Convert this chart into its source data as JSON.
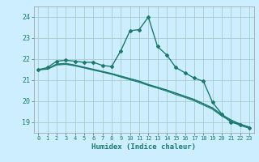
{
  "title": "",
  "xlabel": "Humidex (Indice chaleur)",
  "bg_color": "#cceeff",
  "grid_color": "#aacccc",
  "line_color": "#1a7a6e",
  "xlim": [
    -0.5,
    23.5
  ],
  "ylim": [
    18.5,
    24.5
  ],
  "yticks": [
    19,
    20,
    21,
    22,
    23,
    24
  ],
  "xticks": [
    0,
    1,
    2,
    3,
    4,
    5,
    6,
    7,
    8,
    9,
    10,
    11,
    12,
    13,
    14,
    15,
    16,
    17,
    18,
    19,
    20,
    21,
    22,
    23
  ],
  "lines": [
    {
      "x": [
        0,
        1,
        2,
        3,
        4,
        5,
        6,
        7,
        8,
        9,
        10,
        11,
        12,
        13,
        14,
        15,
        16,
        17,
        18,
        19,
        20,
        21,
        22,
        23
      ],
      "y": [
        21.5,
        21.6,
        21.9,
        21.95,
        21.9,
        21.85,
        21.85,
        21.7,
        21.65,
        22.4,
        23.35,
        23.4,
        24.0,
        22.6,
        22.2,
        21.6,
        21.35,
        21.1,
        20.95,
        19.95,
        19.4,
        19.0,
        18.9,
        18.75
      ],
      "marker": "D",
      "linewidth": 1.0,
      "markersize": 2.0
    },
    {
      "x": [
        0,
        1,
        2,
        3,
        4,
        5,
        6,
        7,
        8,
        9,
        10,
        11,
        12,
        13,
        14,
        15,
        16,
        17,
        18,
        19,
        20,
        21,
        22,
        23
      ],
      "y": [
        21.5,
        21.52,
        21.72,
        21.75,
        21.68,
        21.58,
        21.48,
        21.38,
        21.28,
        21.15,
        21.02,
        20.9,
        20.75,
        20.62,
        20.48,
        20.32,
        20.18,
        20.02,
        19.82,
        19.62,
        19.3,
        19.05,
        18.85,
        18.72
      ],
      "marker": null,
      "linewidth": 0.8,
      "markersize": 0
    },
    {
      "x": [
        0,
        1,
        2,
        3,
        4,
        5,
        6,
        7,
        8,
        9,
        10,
        11,
        12,
        13,
        14,
        15,
        16,
        17,
        18,
        19,
        20,
        21,
        22,
        23
      ],
      "y": [
        21.5,
        21.53,
        21.75,
        21.78,
        21.7,
        21.6,
        21.5,
        21.4,
        21.3,
        21.18,
        21.06,
        20.94,
        20.78,
        20.65,
        20.52,
        20.37,
        20.22,
        20.07,
        19.87,
        19.67,
        19.35,
        19.1,
        18.9,
        18.76
      ],
      "marker": null,
      "linewidth": 0.8,
      "markersize": 0
    },
    {
      "x": [
        0,
        1,
        2,
        3,
        4,
        5,
        6,
        7,
        8,
        9,
        10,
        11,
        12,
        13,
        14,
        15,
        16,
        17,
        18,
        19,
        20,
        21,
        22,
        23
      ],
      "y": [
        21.5,
        21.54,
        21.77,
        21.8,
        21.72,
        21.62,
        21.52,
        21.42,
        21.32,
        21.2,
        21.08,
        20.96,
        20.8,
        20.67,
        20.54,
        20.39,
        20.24,
        20.09,
        19.89,
        19.69,
        19.37,
        19.12,
        18.92,
        18.78
      ],
      "marker": null,
      "linewidth": 0.8,
      "markersize": 0
    }
  ]
}
